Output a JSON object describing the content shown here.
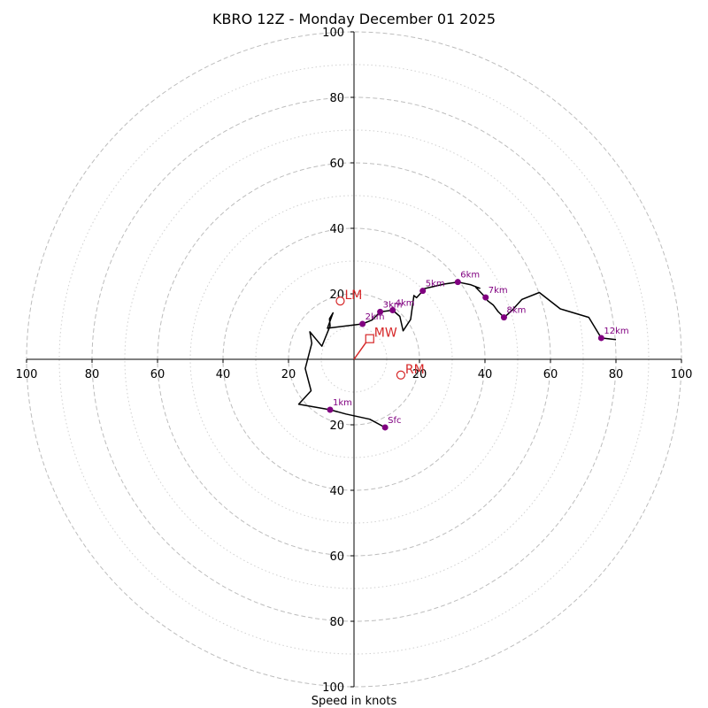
{
  "chart_data": {
    "type": "hodograph",
    "title": "KBRO 12Z - Monday December 01 2025",
    "xlabel": "Speed in knots",
    "range": [
      -100,
      100
    ],
    "rings_major": [
      20,
      40,
      60,
      80,
      100
    ],
    "rings_minor": [
      10,
      30,
      50,
      70,
      90
    ],
    "ticks_x": [
      {
        "value": -100,
        "label": "100"
      },
      {
        "value": -80,
        "label": "80"
      },
      {
        "value": -60,
        "label": "60"
      },
      {
        "value": -40,
        "label": "40"
      },
      {
        "value": -20,
        "label": "20"
      },
      {
        "value": 20,
        "label": "20"
      },
      {
        "value": 40,
        "label": "40"
      },
      {
        "value": 60,
        "label": "60"
      },
      {
        "value": 80,
        "label": "80"
      },
      {
        "value": 100,
        "label": "100"
      }
    ],
    "ticks_y": [
      {
        "value": 100,
        "label": "100"
      },
      {
        "value": 80,
        "label": "80"
      },
      {
        "value": 60,
        "label": "60"
      },
      {
        "value": 40,
        "label": "40"
      },
      {
        "value": 20,
        "label": "20"
      },
      {
        "value": -20,
        "label": "20"
      },
      {
        "value": -40,
        "label": "40"
      },
      {
        "value": -60,
        "label": "60"
      },
      {
        "value": -80,
        "label": "80"
      },
      {
        "value": -100,
        "label": "100"
      }
    ],
    "trace": [
      [
        9.5,
        -20.8
      ],
      [
        4.8,
        -18.3
      ],
      [
        -2.5,
        -16.7
      ],
      [
        -7.3,
        -15.4
      ],
      [
        -16.9,
        -13.7
      ],
      [
        -13.1,
        -9.6
      ],
      [
        -14.9,
        -2.8
      ],
      [
        -12.9,
        4.9
      ],
      [
        -13.5,
        8.4
      ],
      [
        -9.8,
        4.0
      ],
      [
        -7.3,
        10.2
      ],
      [
        -7.5,
        12.4
      ],
      [
        -6.4,
        14.2
      ],
      [
        -8.1,
        9.5
      ],
      [
        2.6,
        10.8
      ],
      [
        5.5,
        12.0
      ],
      [
        8.0,
        14.5
      ],
      [
        11.8,
        15.0
      ],
      [
        14.0,
        13.1
      ],
      [
        15.0,
        8.7
      ],
      [
        17.3,
        12.2
      ],
      [
        18.3,
        19.5
      ],
      [
        19.1,
        18.8
      ],
      [
        21.0,
        20.9
      ],
      [
        21.2,
        21.5
      ],
      [
        27.7,
        23.0
      ],
      [
        31.7,
        23.6
      ],
      [
        35.5,
        22.8
      ],
      [
        38.4,
        21.7
      ],
      [
        37.2,
        22.0
      ],
      [
        40.2,
        18.9
      ],
      [
        40.8,
        17.9
      ],
      [
        42.5,
        16.6
      ],
      [
        44.0,
        14.6
      ],
      [
        45.8,
        12.8
      ],
      [
        46.9,
        13.7
      ],
      [
        48.3,
        15.0
      ],
      [
        51.3,
        18.3
      ],
      [
        56.6,
        20.4
      ],
      [
        63.0,
        15.4
      ],
      [
        71.7,
        12.8
      ],
      [
        75.5,
        6.5
      ],
      [
        80.0,
        6.0
      ]
    ],
    "trace_order_note": "drawn as connected polyline",
    "points": [
      {
        "label": "Sfc",
        "u": 9.5,
        "v": -20.8
      },
      {
        "label": "1km",
        "u": -7.3,
        "v": -15.4
      },
      {
        "label": "2km",
        "u": 2.6,
        "v": 10.8
      },
      {
        "label": "3km",
        "u": 8.0,
        "v": 14.5
      },
      {
        "label": "4km",
        "u": 11.8,
        "v": 15.0
      },
      {
        "label": "5km",
        "u": 21.0,
        "v": 20.9
      },
      {
        "label": "6km",
        "u": 31.7,
        "v": 23.6
      },
      {
        "label": "7km",
        "u": 40.2,
        "v": 18.9
      },
      {
        "label": "8km",
        "u": 45.8,
        "v": 12.8
      },
      {
        "label": "12km",
        "u": 75.5,
        "v": 6.5
      }
    ],
    "storm_motions": [
      {
        "label": "LM",
        "u": -4.2,
        "v": 17.8,
        "marker": "circle"
      },
      {
        "label": "MW",
        "u": 4.8,
        "v": 6.3,
        "marker": "square"
      },
      {
        "label": "RM",
        "u": 14.3,
        "v": -4.8,
        "marker": "circle"
      }
    ],
    "colors": {
      "trace": "#000000",
      "points": "#800080",
      "storm": "#d62728"
    }
  }
}
